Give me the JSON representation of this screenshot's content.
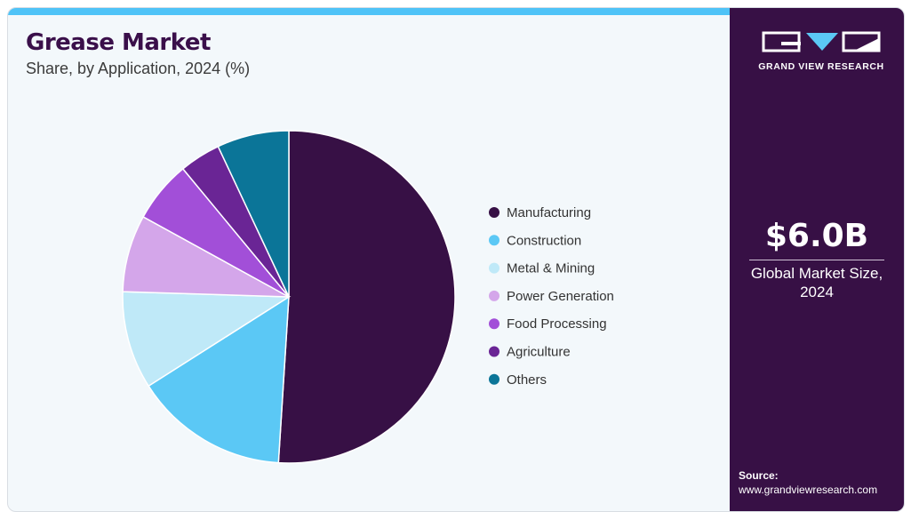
{
  "header": {
    "title": "Grease Market",
    "subtitle": "Share, by Application, 2024 (%)"
  },
  "sidebar": {
    "brand": "GRAND VIEW RESEARCH",
    "market_value": "$6.0B",
    "market_label": "Global Market Size, 2024",
    "source_label": "Source:",
    "source_url": "www.grandviewresearch.com"
  },
  "colors": {
    "sidebar_bg": "#371045",
    "top_accent": "#4fc3f7"
  },
  "chart_data": {
    "type": "pie",
    "title": "Grease Market",
    "subtitle": "Share, by Application, 2024 (%)",
    "legend_position": "right",
    "categories": [
      "Manufacturing",
      "Construction",
      "Metal & Mining",
      "Power Generation",
      "Food Processing",
      "Agriculture",
      "Others"
    ],
    "values": [
      51.0,
      15.0,
      9.5,
      7.5,
      6.0,
      4.0,
      7.0
    ],
    "colors": [
      "#371045",
      "#5bc8f5",
      "#bfe9f8",
      "#d4a6ea",
      "#a24fd8",
      "#6a2595",
      "#0b7598"
    ]
  }
}
